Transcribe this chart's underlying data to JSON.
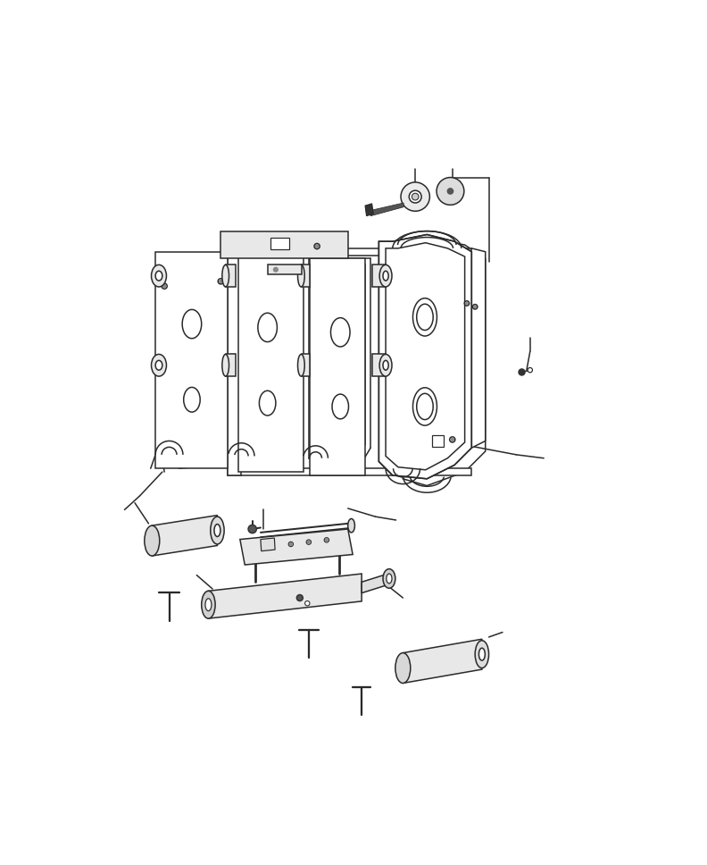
{
  "bg": "#ffffff",
  "lc": "#2a2a2a",
  "lw": 1.1,
  "fig_w": 7.92,
  "fig_h": 9.68,
  "dpi": 100
}
